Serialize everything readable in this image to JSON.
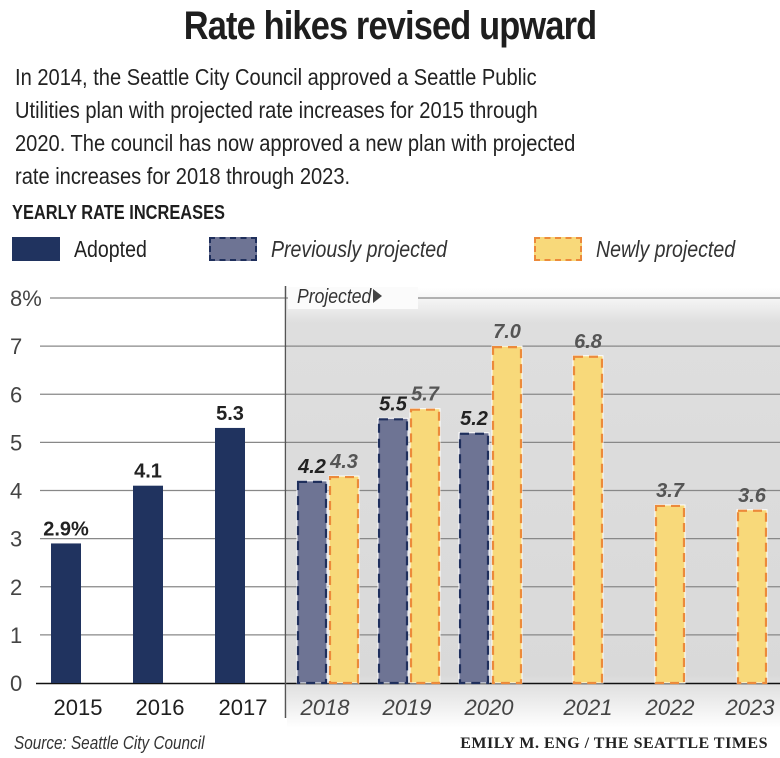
{
  "header": {
    "title": "Rate hikes revised upward",
    "subtitle_lines": [
      "In 2014, the Seattle City Council approved a Seattle Public",
      "Utilities plan with projected rate increases for 2015 through",
      "2020. The council has now approved a new plan with projected",
      "rate increases for 2018 through 2023."
    ],
    "section_label": "YEARLY RATE INCREASES"
  },
  "legend": [
    {
      "name": "Adopted",
      "style": "solid"
    },
    {
      "name": "Previously projected",
      "style": "dashed"
    },
    {
      "name": "Newly projected",
      "style": "dashed"
    }
  ],
  "colors": {
    "adopted": "#20335f",
    "previously_fill": "#6e7494",
    "previously_border": "#1f2f5c",
    "newly_fill": "#f8d97a",
    "newly_border": "#ec8a3a",
    "panel": "#dcdcdc",
    "grid": "#888888"
  },
  "chart_data": {
    "type": "bar",
    "title": "Yearly rate increases",
    "ylabel": "",
    "xlabel": "",
    "ylim": [
      0,
      8
    ],
    "yticks": [
      "0",
      "1",
      "2",
      "3",
      "4",
      "5",
      "6",
      "7",
      "8%"
    ],
    "grid": true,
    "projected_label": "Projected",
    "categories": [
      "2015",
      "2016",
      "2017",
      "2018",
      "2019",
      "2020",
      "2021",
      "2022",
      "2023"
    ],
    "series": [
      {
        "name": "Adopted",
        "values": [
          2.9,
          4.1,
          5.3,
          null,
          null,
          null,
          null,
          null,
          null
        ],
        "labels": [
          "2.9%",
          "4.1",
          "5.3",
          null,
          null,
          null,
          null,
          null,
          null
        ]
      },
      {
        "name": "Previously projected",
        "values": [
          null,
          null,
          null,
          4.2,
          5.5,
          5.2,
          null,
          null,
          null
        ],
        "labels": [
          null,
          null,
          null,
          "4.2",
          "5.5",
          "5.2",
          null,
          null,
          null
        ]
      },
      {
        "name": "Newly projected",
        "values": [
          null,
          null,
          null,
          4.3,
          5.7,
          7.0,
          6.8,
          3.7,
          3.6
        ],
        "labels": [
          null,
          null,
          null,
          "4.3",
          "5.7",
          "7.0",
          "6.8",
          "3.7",
          "3.6"
        ]
      }
    ],
    "source": "Source: Seattle City Council",
    "credit": "EMILY M. ENG / THE SEATTLE TIMES"
  }
}
